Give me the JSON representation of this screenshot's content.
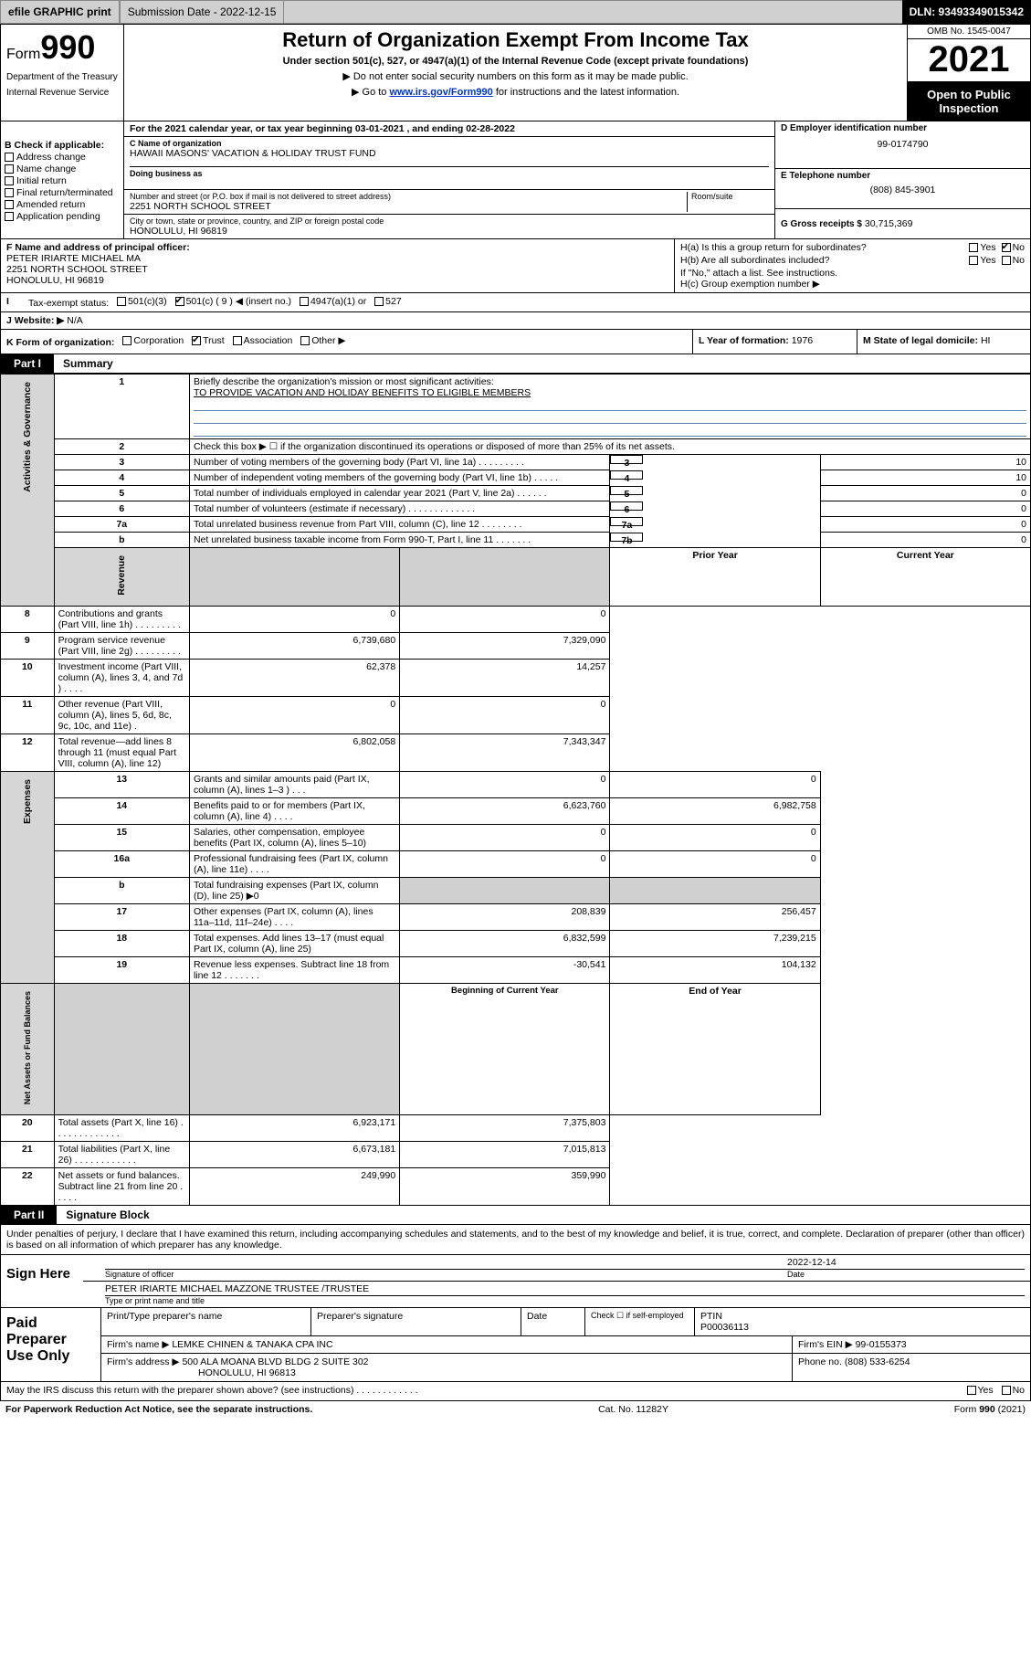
{
  "topbar": {
    "efile": "efile GRAPHIC print",
    "submission": "Submission Date - 2022-12-15",
    "dln": "DLN: 93493349015342"
  },
  "header": {
    "form_prefix": "Form",
    "form_no": "990",
    "dept": "Department of the Treasury",
    "irs": "Internal Revenue Service",
    "title": "Return of Organization Exempt From Income Tax",
    "subtitle": "Under section 501(c), 527, or 4947(a)(1) of the Internal Revenue Code (except private foundations)",
    "note1": "▶ Do not enter social security numbers on this form as it may be made public.",
    "note2_pre": "▶ Go to ",
    "note2_link": "www.irs.gov/Form990",
    "note2_post": " for instructions and the latest information.",
    "omb": "OMB No. 1545-0047",
    "year": "2021",
    "open": "Open to Public Inspection"
  },
  "sectionA": {
    "ty_line": "For the 2021 calendar year, or tax year beginning 03-01-2021    , and ending 02-28-2022",
    "B_label": "B Check if applicable:",
    "checks": {
      "c1": "Address change",
      "c2": "Name change",
      "c3": "Initial return",
      "c4": "Final return/terminated",
      "c5": "Amended return",
      "c6": "Application pending"
    },
    "C_name_lbl": "C Name of organization",
    "C_name": "HAWAII MASONS' VACATION & HOLIDAY TRUST FUND",
    "dba_lbl": "Doing business as",
    "addr_lbl": "Number and street (or P.O. box if mail is not delivered to street address)",
    "room_lbl": "Room/suite",
    "addr": "2251 NORTH SCHOOL STREET",
    "city_lbl": "City or town, state or province, country, and ZIP or foreign postal code",
    "city": "HONOLULU, HI  96819",
    "D_lbl": "D Employer identification number",
    "D_val": "99-0174790",
    "E_lbl": "E Telephone number",
    "E_val": "(808) 845-3901",
    "G_lbl": "G Gross receipts $",
    "G_val": "30,715,369"
  },
  "sectionFrow": {
    "F_lbl": "F Name and address of principal officer:",
    "F_name": "PETER IRIARTE MICHAEL MA",
    "F_addr1": "2251 NORTH SCHOOL STREET",
    "F_addr2": "HONOLULU, HI  96819",
    "Ha_lbl": "H(a)  Is this a group return for subordinates?",
    "Hb_lbl": "H(b)  Are all subordinates included?",
    "Hb_note": "If \"No,\" attach a list. See instructions.",
    "Hc_lbl": "H(c)  Group exemption number ▶",
    "yes": "Yes",
    "no": "No"
  },
  "taxstatus": {
    "I_lbl": "Tax-exempt status:",
    "opt1": "501(c)(3)",
    "opt2": "501(c) ( 9 ) ◀ (insert no.)",
    "opt3": "4947(a)(1) or",
    "opt4": "527"
  },
  "J": {
    "lbl": "Website: ▶",
    "val": "N/A"
  },
  "K": {
    "lbl": "K Form of organization:",
    "o1": "Corporation",
    "o2": "Trust",
    "o3": "Association",
    "o4": "Other ▶"
  },
  "L": {
    "lbl": "L Year of formation:",
    "val": "1976"
  },
  "M": {
    "lbl": "M State of legal domicile:",
    "val": "HI"
  },
  "part1": {
    "tag": "Part I",
    "title": "Summary",
    "line1_lbl": "Briefly describe the organization's mission or most significant activities:",
    "line1_val": "TO PROVIDE VACATION AND HOLIDAY BENEFITS TO ELIGIBLE MEMBERS",
    "line2": "Check this box ▶ ☐  if the organization discontinued its operations or disposed of more than 25% of its net assets.",
    "rows_gov": [
      {
        "n": "3",
        "t": "Number of voting members of the governing body (Part VI, line 1a)   .    .    .    .    .    .    .    .    .",
        "b": "3",
        "v": "10"
      },
      {
        "n": "4",
        "t": "Number of independent voting members of the governing body (Part VI, line 1b)   .    .    .    .    .",
        "b": "4",
        "v": "10"
      },
      {
        "n": "5",
        "t": "Total number of individuals employed in calendar year 2021 (Part V, line 2a)    .    .    .    .    .    .",
        "b": "5",
        "v": "0"
      },
      {
        "n": "6",
        "t": "Total number of volunteers (estimate if necessary)   .    .    .    .    .    .    .    .    .    .    .    .    .",
        "b": "6",
        "v": "0"
      },
      {
        "n": "7a",
        "t": "Total unrelated business revenue from Part VIII, column (C), line 12   .    .    .    .    .    .    .    .",
        "b": "7a",
        "v": "0"
      },
      {
        "n": "b",
        "t": "Net unrelated business taxable income from Form 990-T, Part I, line 11   .    .    .    .    .    .    .",
        "b": "7b",
        "v": "0"
      }
    ],
    "col_prior": "Prior Year",
    "col_curr": "Current Year",
    "rows_rev": [
      {
        "n": "8",
        "t": "Contributions and grants (Part VIII, line 1h)   .    .    .    .    .    .    .    .    .",
        "p": "0",
        "c": "0"
      },
      {
        "n": "9",
        "t": "Program service revenue (Part VIII, line 2g)   .    .    .    .    .    .    .    .    .",
        "p": "6,739,680",
        "c": "7,329,090"
      },
      {
        "n": "10",
        "t": "Investment income (Part VIII, column (A), lines 3, 4, and 7d )   .    .    .    .",
        "p": "62,378",
        "c": "14,257"
      },
      {
        "n": "11",
        "t": "Other revenue (Part VIII, column (A), lines 5, 6d, 8c, 9c, 10c, and 11e)    .",
        "p": "0",
        "c": "0"
      },
      {
        "n": "12",
        "t": "Total revenue—add lines 8 through 11 (must equal Part VIII, column (A), line 12)",
        "p": "6,802,058",
        "c": "7,343,347"
      }
    ],
    "rows_exp": [
      {
        "n": "13",
        "t": "Grants and similar amounts paid (Part IX, column (A), lines 1–3 )   .    .    .",
        "p": "0",
        "c": "0"
      },
      {
        "n": "14",
        "t": "Benefits paid to or for members (Part IX, column (A), line 4)   .    .    .    .",
        "p": "6,623,760",
        "c": "6,982,758"
      },
      {
        "n": "15",
        "t": "Salaries, other compensation, employee benefits (Part IX, column (A), lines 5–10)",
        "p": "0",
        "c": "0"
      },
      {
        "n": "16a",
        "t": "Professional fundraising fees (Part IX, column (A), line 11e)   .    .    .    .",
        "p": "0",
        "c": "0"
      },
      {
        "n": "b",
        "t": "Total fundraising expenses (Part IX, column (D), line 25) ▶0",
        "p": "",
        "c": "",
        "shade": true
      },
      {
        "n": "17",
        "t": "Other expenses (Part IX, column (A), lines 11a–11d, 11f–24e)   .    .    .    .",
        "p": "208,839",
        "c": "256,457"
      },
      {
        "n": "18",
        "t": "Total expenses. Add lines 13–17 (must equal Part IX, column (A), line 25)",
        "p": "6,832,599",
        "c": "7,239,215"
      },
      {
        "n": "19",
        "t": "Revenue less expenses. Subtract line 18 from line 12   .    .    .    .    .    .    .",
        "p": "-30,541",
        "c": "104,132"
      }
    ],
    "col_boy": "Beginning of Current Year",
    "col_eoy": "End of Year",
    "rows_net": [
      {
        "n": "20",
        "t": "Total assets (Part X, line 16)   .    .    .    .    .    .    .    .    .    .    .    .    .",
        "p": "6,923,171",
        "c": "7,375,803"
      },
      {
        "n": "21",
        "t": "Total liabilities (Part X, line 26)   .    .    .    .    .    .    .    .    .    .    .    .",
        "p": "6,673,181",
        "c": "7,015,813"
      },
      {
        "n": "22",
        "t": "Net assets or fund balances. Subtract line 21 from line 20   .    .    .    .    .",
        "p": "249,990",
        "c": "359,990"
      }
    ],
    "sidelabels": {
      "gov": "Activities & Governance",
      "rev": "Revenue",
      "exp": "Expenses",
      "net": "Net Assets or Fund Balances"
    }
  },
  "part2": {
    "tag": "Part II",
    "title": "Signature Block",
    "declare": "Under penalties of perjury, I declare that I have examined this return, including accompanying schedules and statements, and to the best of my knowledge and belief, it is true, correct, and complete. Declaration of preparer (other than officer) is based on all information of which preparer has any knowledge.",
    "sign_here": "Sign Here",
    "sig_officer": "Signature of officer",
    "date_lbl": "Date",
    "date_val": "2022-12-14",
    "name_title": "PETER IRIARTE MICHAEL MAZZONE  TRUSTEE /TRUSTEE",
    "name_title_lbl": "Type or print name and title"
  },
  "paid": {
    "title": "Paid Preparer Use Only",
    "h1": "Print/Type preparer's name",
    "h2": "Preparer's signature",
    "h3": "Date",
    "h4_pre": "Check ☐ if self-employed",
    "h5": "PTIN",
    "ptin": "P00036113",
    "firm_lbl": "Firm's name    ▶",
    "firm": "LEMKE CHINEN & TANAKA CPA INC",
    "ein_lbl": "Firm's EIN ▶",
    "ein": "99-0155373",
    "addr_lbl": "Firm's address ▶",
    "addr1": "500 ALA MOANA BLVD BLDG 2 SUITE 302",
    "addr2": "HONOLULU, HI  96813",
    "phone_lbl": "Phone no.",
    "phone": "(808) 533-6254"
  },
  "footer": {
    "discuss": "May the IRS discuss this return with the preparer shown above? (see instructions)   .    .    .    .    .    .    .    .    .    .    .    .",
    "yes": "Yes",
    "no": "No",
    "pra": "For Paperwork Reduction Act Notice, see the separate instructions.",
    "cat": "Cat. No. 11282Y",
    "form": "Form 990 (2021)"
  }
}
